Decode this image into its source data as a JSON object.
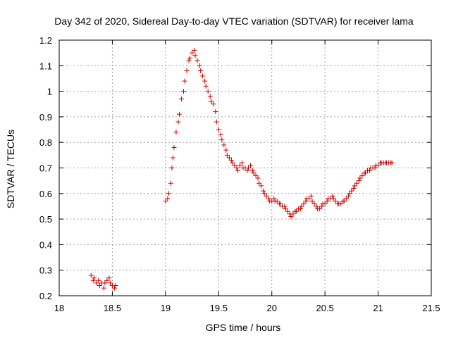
{
  "chart_data": {
    "type": "scatter",
    "title": "Day 342 of 2020, Sidereal Day-to-day VTEC variation (SDTVAR) for receiver lama",
    "xlabel": "GPS time / hours",
    "ylabel": "SDTVAR / TECUs",
    "xlim": [
      18,
      21.5
    ],
    "ylim": [
      0.2,
      1.2
    ],
    "xticks": [
      18,
      18.5,
      19,
      19.5,
      20,
      20.5,
      21,
      21.5
    ],
    "xtick_labels": [
      "18",
      "18.5",
      "19",
      "19.5",
      "20",
      "20.5",
      "21",
      "21.5"
    ],
    "yticks": [
      0.2,
      0.3,
      0.4,
      0.5,
      0.6,
      0.7,
      0.8,
      0.9,
      1.0,
      1.1,
      1.2
    ],
    "ytick_labels": [
      "0.2",
      "0.3",
      "0.4",
      "0.5",
      "0.6",
      "0.7",
      "0.8",
      "0.9",
      "1",
      "1.1",
      "1.2"
    ],
    "grid": true,
    "marker": "+",
    "color": "#cc0000",
    "series": [
      {
        "name": "SDTVAR",
        "x": [
          18.3,
          18.32,
          18.33,
          18.35,
          18.37,
          18.38,
          18.4,
          18.42,
          18.43,
          18.45,
          18.47,
          18.48,
          18.5,
          18.52,
          18.53,
          19.0,
          19.02,
          19.03,
          19.05,
          19.06,
          19.07,
          19.08,
          19.1,
          19.12,
          19.13,
          19.15,
          19.17,
          19.18,
          19.2,
          19.22,
          19.23,
          19.25,
          19.27,
          19.28,
          19.3,
          19.32,
          19.33,
          19.35,
          19.37,
          19.38,
          19.4,
          19.42,
          19.43,
          19.45,
          19.47,
          19.48,
          19.5,
          19.52,
          19.53,
          19.55,
          19.57,
          19.58,
          19.6,
          19.62,
          19.63,
          19.65,
          19.67,
          19.68,
          19.7,
          19.72,
          19.73,
          19.75,
          19.77,
          19.78,
          19.8,
          19.82,
          19.83,
          19.85,
          19.87,
          19.88,
          19.9,
          19.92,
          19.93,
          19.95,
          19.97,
          19.98,
          20.0,
          20.02,
          20.03,
          20.05,
          20.07,
          20.08,
          20.1,
          20.12,
          20.13,
          20.15,
          20.17,
          20.18,
          20.2,
          20.22,
          20.23,
          20.25,
          20.27,
          20.28,
          20.3,
          20.32,
          20.33,
          20.35,
          20.37,
          20.38,
          20.4,
          20.42,
          20.43,
          20.45,
          20.47,
          20.48,
          20.5,
          20.52,
          20.53,
          20.55,
          20.57,
          20.58,
          20.6,
          20.62,
          20.63,
          20.65,
          20.67,
          20.68,
          20.7,
          20.72,
          20.73,
          20.75,
          20.77,
          20.78,
          20.8,
          20.82,
          20.83,
          20.85,
          20.87,
          20.88,
          20.9,
          20.92,
          20.93,
          20.95,
          20.97,
          20.98,
          21.0,
          21.02,
          21.03,
          21.05,
          21.07,
          21.08,
          21.1,
          21.12,
          21.13
        ],
        "y": [
          0.28,
          0.26,
          0.27,
          0.25,
          0.26,
          0.24,
          0.25,
          0.23,
          0.25,
          0.26,
          0.27,
          0.25,
          0.24,
          0.23,
          0.24,
          0.57,
          0.58,
          0.6,
          0.64,
          0.7,
          0.74,
          0.78,
          0.84,
          0.88,
          0.91,
          0.97,
          1.0,
          1.04,
          1.08,
          1.12,
          1.13,
          1.15,
          1.16,
          1.14,
          1.12,
          1.1,
          1.08,
          1.06,
          1.04,
          1.02,
          1.0,
          0.98,
          0.96,
          0.95,
          0.92,
          0.88,
          0.85,
          0.83,
          0.81,
          0.79,
          0.77,
          0.75,
          0.74,
          0.73,
          0.72,
          0.71,
          0.7,
          0.69,
          0.71,
          0.72,
          0.7,
          0.7,
          0.69,
          0.7,
          0.71,
          0.69,
          0.68,
          0.67,
          0.66,
          0.64,
          0.63,
          0.61,
          0.6,
          0.59,
          0.58,
          0.57,
          0.57,
          0.58,
          0.57,
          0.57,
          0.56,
          0.56,
          0.55,
          0.55,
          0.54,
          0.53,
          0.52,
          0.51,
          0.52,
          0.53,
          0.53,
          0.54,
          0.54,
          0.55,
          0.56,
          0.57,
          0.58,
          0.58,
          0.59,
          0.57,
          0.56,
          0.55,
          0.54,
          0.54,
          0.55,
          0.56,
          0.56,
          0.57,
          0.58,
          0.58,
          0.59,
          0.58,
          0.57,
          0.56,
          0.56,
          0.56,
          0.57,
          0.57,
          0.58,
          0.59,
          0.6,
          0.61,
          0.62,
          0.63,
          0.64,
          0.65,
          0.66,
          0.67,
          0.68,
          0.68,
          0.69,
          0.69,
          0.7,
          0.7,
          0.7,
          0.71,
          0.71,
          0.72,
          0.72,
          0.72,
          0.72,
          0.72,
          0.72,
          0.72,
          0.72
        ]
      }
    ]
  }
}
